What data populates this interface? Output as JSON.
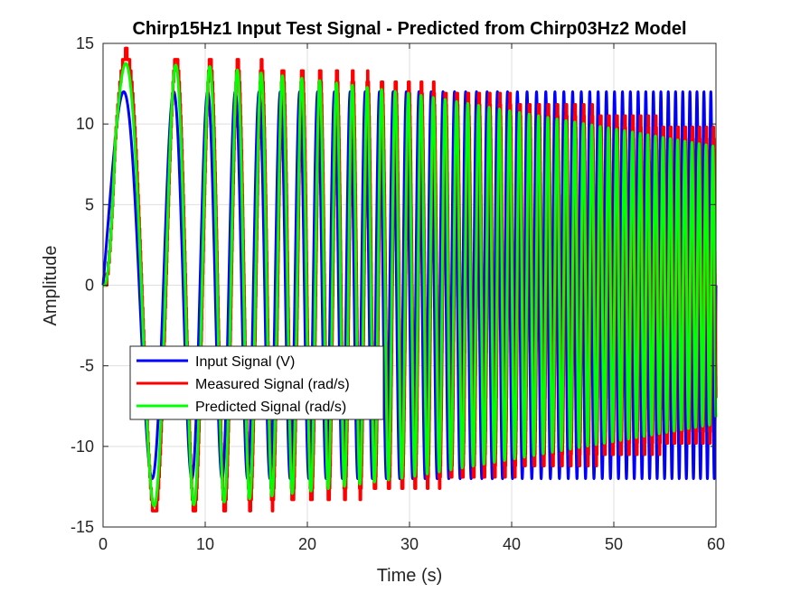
{
  "chart_data": {
    "type": "line",
    "title": "Chirp15Hz1 Input Test Signal - Predicted from Chirp03Hz2 Model",
    "xlabel": "Time (s)",
    "ylabel": "Amplitude",
    "xlim": [
      0,
      60
    ],
    "ylim": [
      -15,
      15
    ],
    "xticks": [
      "0",
      "10",
      "20",
      "30",
      "40",
      "50",
      "60"
    ],
    "yticks": [
      "-15",
      "-10",
      "-5",
      "0",
      "5",
      "10",
      "15"
    ],
    "grid": true,
    "legend_position": "lower-left",
    "signal": {
      "kind": "linear chirp",
      "duration_s": 60,
      "start_freq_hz": 0.1,
      "end_freq_hz": 1.5,
      "input_amplitude": 12
    },
    "series": [
      {
        "name": "Input Signal (V)",
        "color": "#0000ff",
        "amplitude_profile": [
          [
            0,
            12
          ],
          [
            60,
            12
          ]
        ]
      },
      {
        "name": "Measured Signal (rad/s)",
        "color": "#ff0000",
        "amplitude_profile": [
          [
            0,
            14.5
          ],
          [
            10,
            14.0
          ],
          [
            20,
            13.5
          ],
          [
            30,
            12.6
          ],
          [
            40,
            11.6
          ],
          [
            50,
            10.7
          ],
          [
            60,
            9.5
          ]
        ],
        "lag_s": 0.25,
        "quantization": 0.7
      },
      {
        "name": "Predicted Signal (rad/s)",
        "color": "#00ff00",
        "amplitude_profile": [
          [
            0,
            13.8
          ],
          [
            10,
            13.6
          ],
          [
            20,
            12.8
          ],
          [
            30,
            11.9
          ],
          [
            40,
            10.8
          ],
          [
            50,
            9.7
          ],
          [
            60,
            8.6
          ]
        ],
        "lag_s": 0.2
      }
    ]
  }
}
